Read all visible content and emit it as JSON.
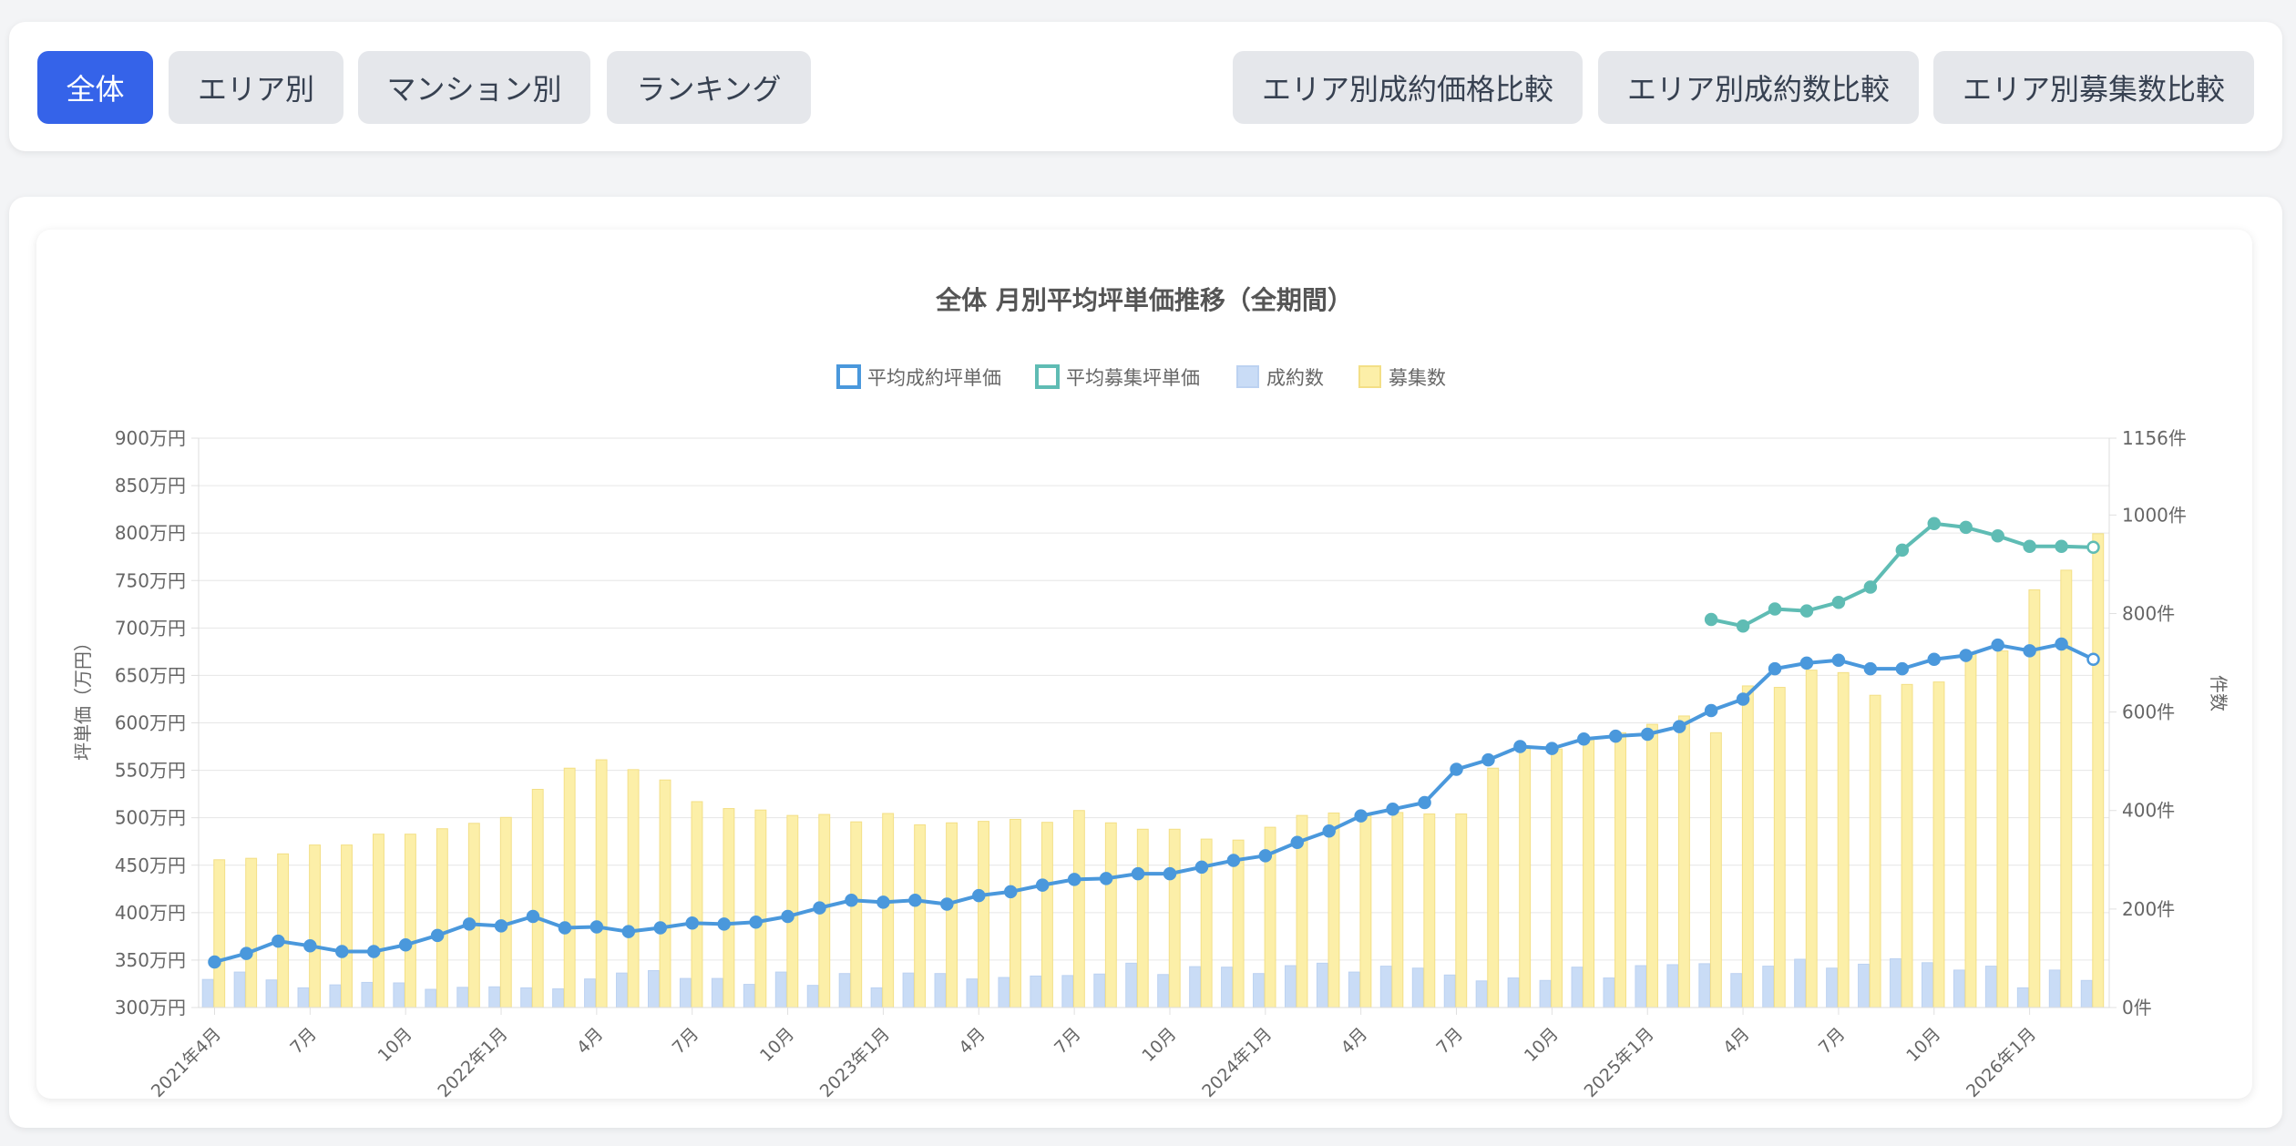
{
  "tabs_left": [
    {
      "label": "全体",
      "active": true
    },
    {
      "label": "エリア別",
      "active": false
    },
    {
      "label": "マンション別",
      "active": false
    },
    {
      "label": "ランキング",
      "active": false
    }
  ],
  "tabs_right": [
    {
      "label": "エリア別成約価格比較"
    },
    {
      "label": "エリア別成約数比較"
    },
    {
      "label": "エリア別募集数比較"
    }
  ],
  "colors": {
    "contract_price": "#4a98dc",
    "listing_price": "#5fbcb4",
    "contract_count": "#c9dcf6",
    "listing_count": "#fcefa8",
    "active_tab": "#3563e9"
  },
  "chart_data": {
    "type": "bar+line",
    "title": "全体 月別平均坪単価推移（全期間）",
    "ylabel_left": "坪単価（万円）",
    "ylabel_right": "件数",
    "ylim_left": [
      300,
      900
    ],
    "ylim_right": [
      0,
      1156
    ],
    "yticks_left": [
      "900万円",
      "850万円",
      "800万円",
      "750万円",
      "700万円",
      "650万円",
      "600万円",
      "550万円",
      "500万円",
      "450万円",
      "400万円",
      "350万円",
      "300万円"
    ],
    "yticks_right": [
      "1156件",
      "1000件",
      "800件",
      "600件",
      "400件",
      "200件",
      "0件"
    ],
    "xtick_labels": [
      {
        "index": 0,
        "label": "2021年4月"
      },
      {
        "index": 3,
        "label": "7月"
      },
      {
        "index": 6,
        "label": "10月"
      },
      {
        "index": 9,
        "label": "2022年1月"
      },
      {
        "index": 12,
        "label": "4月"
      },
      {
        "index": 15,
        "label": "7月"
      },
      {
        "index": 18,
        "label": "10月"
      },
      {
        "index": 21,
        "label": "2023年1月"
      },
      {
        "index": 24,
        "label": "4月"
      },
      {
        "index": 27,
        "label": "7月"
      },
      {
        "index": 30,
        "label": "10月"
      },
      {
        "index": 33,
        "label": "2024年1月"
      },
      {
        "index": 36,
        "label": "4月"
      },
      {
        "index": 39,
        "label": "7月"
      },
      {
        "index": 42,
        "label": "10月"
      },
      {
        "index": 45,
        "label": "2025年1月"
      },
      {
        "index": 48,
        "label": "4月"
      },
      {
        "index": 51,
        "label": "7月"
      },
      {
        "index": 54,
        "label": "10月"
      },
      {
        "index": 57,
        "label": "2026年1月"
      }
    ],
    "legend": [
      "平均成約坪単価",
      "平均募集坪単価",
      "成約数",
      "募集数"
    ],
    "legend_position": "top",
    "series": [
      {
        "name": "平均成約坪単価",
        "axis": "left",
        "kind": "line",
        "start_index": 0,
        "values": [
          348,
          357,
          370,
          365,
          359,
          359,
          366,
          376,
          388,
          386,
          396,
          384,
          385,
          380,
          384,
          389,
          388,
          390,
          396,
          405,
          413,
          411,
          413,
          409,
          418,
          422,
          429,
          435,
          436,
          441,
          441,
          448,
          455,
          460,
          474,
          486,
          502,
          509,
          516,
          551,
          561,
          575,
          573,
          583,
          586,
          588,
          596,
          613,
          625,
          657,
          663,
          666,
          657,
          657,
          667,
          671,
          682,
          676,
          683,
          667
        ]
      },
      {
        "name": "平均募集坪単価",
        "axis": "left",
        "kind": "line",
        "start_index": 47,
        "values": [
          709,
          702,
          720,
          718,
          727,
          743,
          782,
          810,
          806,
          797,
          786,
          786,
          785
        ]
      },
      {
        "name": "成約数",
        "axis": "right",
        "kind": "bar",
        "start_index": 0,
        "values": [
          57,
          72,
          56,
          40,
          46,
          51,
          50,
          37,
          41,
          42,
          40,
          38,
          58,
          70,
          75,
          59,
          59,
          47,
          72,
          45,
          69,
          40,
          70,
          69,
          58,
          61,
          64,
          65,
          68,
          90,
          67,
          83,
          82,
          69,
          85,
          90,
          72,
          84,
          80,
          66,
          54,
          60,
          55,
          82,
          60,
          85,
          87,
          89,
          69,
          84,
          98,
          80,
          88,
          99,
          91,
          76,
          84,
          40,
          76,
          55
        ]
      },
      {
        "name": "募集数",
        "axis": "right",
        "kind": "bar",
        "start_index": 0,
        "values": [
          300,
          303,
          312,
          330,
          330,
          352,
          352,
          363,
          374,
          386,
          443,
          486,
          503,
          483,
          462,
          418,
          404,
          401,
          390,
          392,
          377,
          394,
          371,
          375,
          378,
          382,
          376,
          400,
          375,
          362,
          362,
          342,
          340,
          366,
          390,
          395,
          393,
          396,
          393,
          393,
          486,
          528,
          525,
          548,
          558,
          575,
          592,
          558,
          653,
          650,
          685,
          680,
          634,
          656,
          661,
          718,
          724,
          848,
          888,
          962
        ]
      }
    ]
  }
}
